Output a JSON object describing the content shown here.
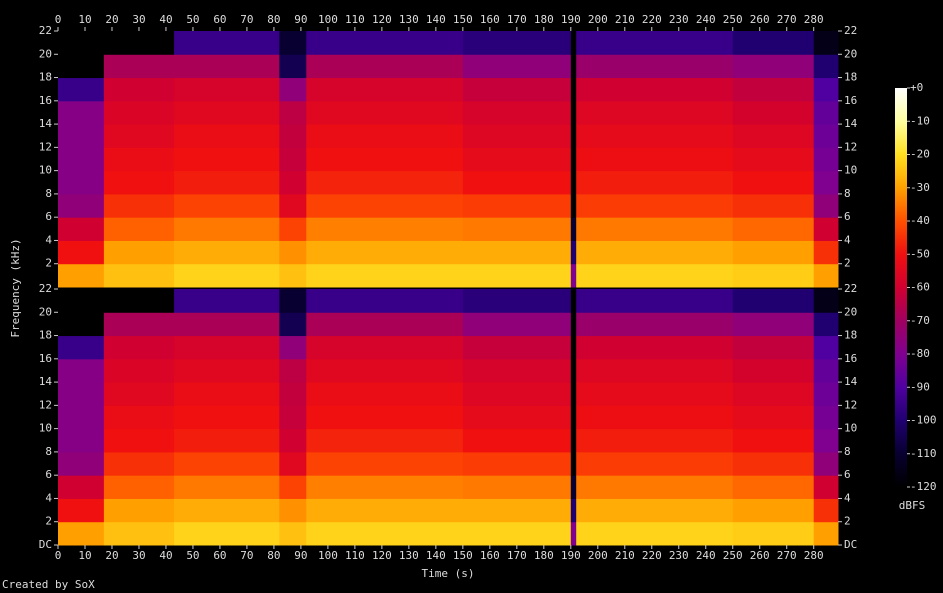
{
  "chart_data": {
    "type": "spectrogram",
    "x_label": "Time (s)",
    "y_label": "Frequency (kHz)",
    "footer": "Created by SoX",
    "colorbar_label": "dBFS",
    "xlim": [
      0,
      289
    ],
    "xticks": [
      0,
      10,
      20,
      30,
      40,
      50,
      60,
      70,
      80,
      90,
      100,
      110,
      120,
      130,
      140,
      150,
      160,
      170,
      180,
      190,
      200,
      210,
      220,
      230,
      240,
      250,
      260,
      270,
      280
    ],
    "time_edges": [
      0,
      17,
      43,
      82,
      92,
      150,
      190,
      192,
      250,
      280,
      289
    ],
    "freq_edges": [
      0,
      2,
      4,
      6,
      8,
      10,
      12,
      14,
      16,
      18,
      20,
      22
    ],
    "clim": [
      -120,
      0
    ],
    "cticks": [
      {
        "value": 0,
        "label": "+0"
      },
      -10,
      -20,
      -30,
      -40,
      -50,
      -60,
      -70,
      -80,
      -90,
      -100,
      -110,
      -120
    ],
    "colormap": [
      "#000000",
      "#080030",
      "#200070",
      "#5000a0",
      "#800090",
      "#a00060",
      "#d00030",
      "#f01010",
      "#ff5000",
      "#ffa000",
      "#ffe020",
      "#ffffa0",
      "#ffffff"
    ],
    "channels": [
      {
        "ylim": [
          0,
          22
        ],
        "yticks": [
          2,
          4,
          6,
          8,
          10,
          12,
          14,
          16,
          18,
          20,
          22
        ],
        "values": [
          [
            -30,
            -50,
            -60,
            -75,
            -78,
            -78,
            -78,
            -78,
            -95,
            -120,
            -120
          ],
          [
            -25,
            -30,
            -38,
            -45,
            -50,
            -52,
            -55,
            -57,
            -60,
            -68,
            -120
          ],
          [
            -22,
            -28,
            -35,
            -42,
            -48,
            -50,
            -52,
            -55,
            -58,
            -68,
            -95
          ],
          [
            -25,
            -32,
            -42,
            -55,
            -60,
            -62,
            -63,
            -64,
            -75,
            -105,
            -110
          ],
          [
            -22,
            -28,
            -34,
            -42,
            -47,
            -50,
            -52,
            -55,
            -58,
            -68,
            -95
          ],
          [
            -22,
            -28,
            -35,
            -43,
            -50,
            -53,
            -56,
            -58,
            -62,
            -75,
            -98
          ],
          [
            -80,
            -100,
            -110,
            -120,
            -120,
            -120,
            -120,
            -120,
            -120,
            -120,
            -120
          ],
          [
            -22,
            -28,
            -35,
            -43,
            -48,
            -51,
            -53,
            -56,
            -60,
            -72,
            -95
          ],
          [
            -23,
            -30,
            -37,
            -45,
            -50,
            -53,
            -56,
            -59,
            -63,
            -75,
            -100
          ],
          [
            -30,
            -45,
            -60,
            -75,
            -80,
            -82,
            -84,
            -86,
            -90,
            -100,
            -115
          ]
        ]
      },
      {
        "ylim": [
          0,
          22
        ],
        "yticks": [
          {
            "value": 0,
            "label": "DC"
          },
          2,
          4,
          6,
          8,
          10,
          12,
          14,
          16,
          18,
          20,
          22
        ],
        "values": [
          [
            -30,
            -50,
            -60,
            -75,
            -78,
            -78,
            -78,
            -78,
            -95,
            -120,
            -120
          ],
          [
            -25,
            -30,
            -38,
            -45,
            -50,
            -52,
            -55,
            -57,
            -60,
            -68,
            -120
          ],
          [
            -22,
            -28,
            -35,
            -42,
            -48,
            -50,
            -52,
            -55,
            -58,
            -68,
            -95
          ],
          [
            -25,
            -32,
            -42,
            -55,
            -60,
            -62,
            -63,
            -64,
            -75,
            -105,
            -110
          ],
          [
            -22,
            -28,
            -34,
            -42,
            -47,
            -50,
            -52,
            -55,
            -58,
            -68,
            -95
          ],
          [
            -22,
            -28,
            -35,
            -43,
            -50,
            -53,
            -56,
            -58,
            -62,
            -75,
            -98
          ],
          [
            -80,
            -100,
            -110,
            -120,
            -120,
            -120,
            -120,
            -120,
            -120,
            -120,
            -120
          ],
          [
            -22,
            -28,
            -35,
            -43,
            -48,
            -51,
            -53,
            -56,
            -60,
            -72,
            -95
          ],
          [
            -23,
            -30,
            -37,
            -45,
            -50,
            -53,
            -56,
            -59,
            -63,
            -75,
            -100
          ],
          [
            -30,
            -45,
            -60,
            -75,
            -80,
            -82,
            -84,
            -86,
            -90,
            -100,
            -115
          ]
        ]
      }
    ]
  }
}
